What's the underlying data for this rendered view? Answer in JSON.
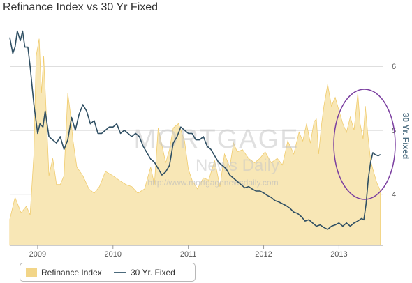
{
  "title": "Refinance Index vs 30 Yr Fixed",
  "watermark": {
    "line1": "MORTGAGE",
    "line2": "News Daily",
    "line3": "http://www.mortgagenewsdaily.com"
  },
  "colors": {
    "area_fill": "#f8e7b6",
    "area_stroke": "#f0cc6e",
    "line": "#2f4f63",
    "grid": "#bdbdbd",
    "highlight_ellipse": "#7b3fa0",
    "axis_title": "#4f6f82"
  },
  "legend": {
    "placement": "bottom-left",
    "items": [
      {
        "name": "Refinance Index",
        "icon": "area-swatch-icon"
      },
      {
        "name": "30 Yr. Fixed",
        "icon": "line-swatch-icon"
      }
    ]
  },
  "annotation": {
    "type": "ellipse",
    "label": "",
    "target": "mid-2013 rate spike"
  },
  "chart_data": {
    "type": "area",
    "title": "Refinance Index vs 30 Yr Fixed",
    "xlabel": "",
    "ylabel": "",
    "y2label": "30 Yr. Fixed",
    "xlim": [
      2008.63,
      2013.58
    ],
    "y2lim": [
      3.2,
      6.6
    ],
    "x_ticks": [
      "2009",
      "2010",
      "2011",
      "2012",
      "2013"
    ],
    "y2_ticks": [
      "4",
      "5",
      "6"
    ],
    "grid": true,
    "series": [
      {
        "name": "Refinance Index",
        "type": "area",
        "axis": "hidden-left",
        "ylim": [
          0,
          1000
        ],
        "x": [
          2008.63,
          2008.7,
          2008.78,
          2008.85,
          2008.9,
          2008.95,
          2008.98,
          2009.02,
          2009.05,
          2009.08,
          2009.12,
          2009.15,
          2009.2,
          2009.25,
          2009.3,
          2009.35,
          2009.4,
          2009.43,
          2009.47,
          2009.52,
          2009.6,
          2009.68,
          2009.75,
          2009.82,
          2009.9,
          2009.95,
          2010.0,
          2010.08,
          2010.17,
          2010.25,
          2010.33,
          2010.42,
          2010.5,
          2010.55,
          2010.6,
          2010.65,
          2010.7,
          2010.75,
          2010.8,
          2010.87,
          2010.95,
          2011.0,
          2011.05,
          2011.12,
          2011.2,
          2011.27,
          2011.35,
          2011.42,
          2011.48,
          2011.55,
          2011.6,
          2011.65,
          2011.72,
          2011.8,
          2011.88,
          2011.95,
          2012.02,
          2012.1,
          2012.18,
          2012.25,
          2012.32,
          2012.4,
          2012.47,
          2012.52,
          2012.57,
          2012.62,
          2012.67,
          2012.7,
          2012.73,
          2012.77,
          2012.8,
          2012.85,
          2012.9,
          2012.95,
          2013.0,
          2013.05,
          2013.1,
          2013.15,
          2013.2,
          2013.25,
          2013.28,
          2013.32,
          2013.35,
          2013.38,
          2013.42,
          2013.45,
          2013.5,
          2013.55
        ],
        "values": [
          120,
          220,
          150,
          180,
          140,
          420,
          870,
          950,
          700,
          870,
          560,
          320,
          400,
          280,
          280,
          320,
          700,
          620,
          480,
          360,
          320,
          260,
          240,
          270,
          340,
          330,
          320,
          300,
          280,
          270,
          240,
          260,
          360,
          280,
          540,
          460,
          380,
          440,
          540,
          560,
          480,
          350,
          300,
          260,
          310,
          300,
          390,
          270,
          420,
          360,
          470,
          430,
          440,
          400,
          380,
          400,
          430,
          380,
          400,
          370,
          480,
          420,
          520,
          480,
          560,
          470,
          570,
          580,
          420,
          560,
          640,
          740,
          640,
          680,
          620,
          560,
          520,
          590,
          530,
          700,
          560,
          490,
          640,
          520,
          390,
          350,
          290,
          250
        ]
      },
      {
        "name": "30 Yr. Fixed",
        "type": "line",
        "axis": "right",
        "ylim": [
          3.2,
          6.6
        ],
        "x": [
          2008.63,
          2008.67,
          2008.7,
          2008.73,
          2008.77,
          2008.8,
          2008.83,
          2008.87,
          2008.9,
          2008.95,
          2009.0,
          2009.03,
          2009.07,
          2009.1,
          2009.15,
          2009.2,
          2009.25,
          2009.3,
          2009.35,
          2009.4,
          2009.45,
          2009.5,
          2009.55,
          2009.6,
          2009.65,
          2009.7,
          2009.75,
          2009.8,
          2009.85,
          2009.9,
          2009.95,
          2010.0,
          2010.05,
          2010.1,
          2010.15,
          2010.2,
          2010.25,
          2010.3,
          2010.35,
          2010.4,
          2010.45,
          2010.5,
          2010.55,
          2010.6,
          2010.65,
          2010.7,
          2010.75,
          2010.8,
          2010.85,
          2010.9,
          2010.95,
          2011.0,
          2011.05,
          2011.1,
          2011.15,
          2011.2,
          2011.25,
          2011.3,
          2011.35,
          2011.4,
          2011.45,
          2011.5,
          2011.55,
          2011.6,
          2011.65,
          2011.7,
          2011.75,
          2011.8,
          2011.85,
          2011.9,
          2011.95,
          2012.0,
          2012.05,
          2012.1,
          2012.15,
          2012.2,
          2012.25,
          2012.3,
          2012.35,
          2012.4,
          2012.45,
          2012.5,
          2012.55,
          2012.6,
          2012.65,
          2012.7,
          2012.75,
          2012.8,
          2012.85,
          2012.9,
          2012.95,
          2013.0,
          2013.05,
          2013.1,
          2013.15,
          2013.2,
          2013.25,
          2013.3,
          2013.33,
          2013.36,
          2013.39,
          2013.42,
          2013.45,
          2013.48,
          2013.52,
          2013.55
        ],
        "values": [
          6.45,
          6.2,
          6.3,
          6.55,
          6.4,
          6.55,
          6.3,
          6.3,
          6.0,
          5.4,
          4.95,
          5.1,
          5.05,
          5.3,
          4.9,
          4.85,
          4.8,
          4.9,
          4.7,
          4.85,
          5.2,
          5.0,
          5.25,
          5.4,
          5.3,
          5.1,
          5.15,
          4.95,
          4.95,
          5.0,
          5.05,
          5.05,
          5.1,
          4.95,
          5.0,
          4.95,
          4.9,
          4.95,
          4.9,
          4.75,
          4.65,
          4.55,
          4.5,
          4.4,
          4.3,
          4.35,
          4.45,
          4.8,
          4.9,
          5.05,
          5.0,
          4.95,
          4.95,
          4.85,
          4.85,
          4.9,
          4.75,
          4.7,
          4.6,
          4.5,
          4.45,
          4.4,
          4.3,
          4.25,
          4.2,
          4.15,
          4.1,
          4.12,
          4.08,
          4.05,
          4.05,
          4.02,
          3.98,
          3.95,
          3.9,
          3.88,
          3.85,
          3.82,
          3.78,
          3.72,
          3.7,
          3.65,
          3.58,
          3.6,
          3.55,
          3.5,
          3.52,
          3.48,
          3.45,
          3.5,
          3.52,
          3.55,
          3.5,
          3.55,
          3.5,
          3.55,
          3.58,
          3.62,
          3.6,
          3.85,
          4.25,
          4.5,
          4.65,
          4.62,
          4.6,
          4.62
        ]
      }
    ]
  }
}
